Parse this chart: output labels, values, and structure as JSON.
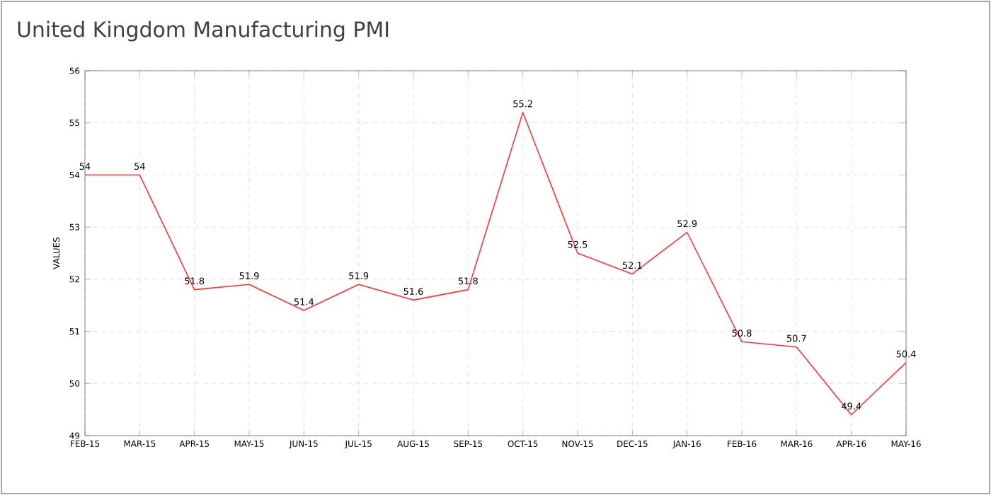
{
  "chart_data": {
    "type": "line",
    "title": "United Kingdom Manufacturing PMI",
    "ylabel": "VALUES",
    "categories": [
      "FEB-15",
      "MAR-15",
      "APR-15",
      "MAY-15",
      "JUN-15",
      "JUL-15",
      "AUG-15",
      "SEP-15",
      "OCT-15",
      "NOV-15",
      "DEC-15",
      "JAN-16",
      "FEB-16",
      "MAR-16",
      "APR-16",
      "MAY-16"
    ],
    "values": [
      54,
      54,
      51.8,
      51.9,
      51.4,
      51.9,
      51.6,
      51.8,
      55.2,
      52.5,
      52.1,
      52.9,
      50.8,
      50.7,
      49.4,
      50.4
    ],
    "color": "#ff3333",
    "ylim": [
      49,
      56
    ],
    "yticks": [
      49,
      50,
      51,
      52,
      53,
      54,
      55,
      56
    ],
    "grid": true,
    "data_labels": true,
    "marker": "none",
    "line_style": "solid"
  }
}
